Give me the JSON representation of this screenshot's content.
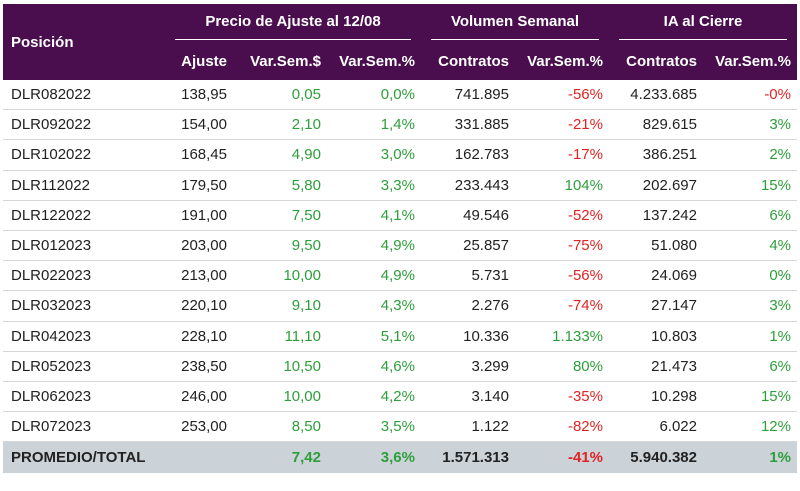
{
  "header": {
    "position": "Posición",
    "group_price": "Precio de Ajuste al 12/08",
    "group_volume": "Volumen Semanal",
    "group_ia": "IA al Cierre",
    "sub": [
      "Ajuste",
      "Var.Sem.$",
      "Var.Sem.%",
      "Contratos",
      "Var.Sem.%",
      "Contratos",
      "Var.Sem.%"
    ]
  },
  "rows": [
    {
      "pos": "DLR082022",
      "ajuste": "138,95",
      "var_usd": "0,05",
      "var_pct": "0,0%",
      "vol": "741.895",
      "vol_var": "-56%",
      "ia": "4.233.685",
      "ia_var": "-0%"
    },
    {
      "pos": "DLR092022",
      "ajuste": "154,00",
      "var_usd": "2,10",
      "var_pct": "1,4%",
      "vol": "331.885",
      "vol_var": "-21%",
      "ia": "829.615",
      "ia_var": "3%"
    },
    {
      "pos": "DLR102022",
      "ajuste": "168,45",
      "var_usd": "4,90",
      "var_pct": "3,0%",
      "vol": "162.783",
      "vol_var": "-17%",
      "ia": "386.251",
      "ia_var": "2%"
    },
    {
      "pos": "DLR112022",
      "ajuste": "179,50",
      "var_usd": "5,80",
      "var_pct": "3,3%",
      "vol": "233.443",
      "vol_var": "104%",
      "ia": "202.697",
      "ia_var": "15%"
    },
    {
      "pos": "DLR122022",
      "ajuste": "191,00",
      "var_usd": "7,50",
      "var_pct": "4,1%",
      "vol": "49.546",
      "vol_var": "-52%",
      "ia": "137.242",
      "ia_var": "6%"
    },
    {
      "pos": "DLR012023",
      "ajuste": "203,00",
      "var_usd": "9,50",
      "var_pct": "4,9%",
      "vol": "25.857",
      "vol_var": "-75%",
      "ia": "51.080",
      "ia_var": "4%"
    },
    {
      "pos": "DLR022023",
      "ajuste": "213,00",
      "var_usd": "10,00",
      "var_pct": "4,9%",
      "vol": "5.731",
      "vol_var": "-56%",
      "ia": "24.069",
      "ia_var": "0%"
    },
    {
      "pos": "DLR032023",
      "ajuste": "220,10",
      "var_usd": "9,10",
      "var_pct": "4,3%",
      "vol": "2.276",
      "vol_var": "-74%",
      "ia": "27.147",
      "ia_var": "3%"
    },
    {
      "pos": "DLR042023",
      "ajuste": "228,10",
      "var_usd": "11,10",
      "var_pct": "5,1%",
      "vol": "10.336",
      "vol_var": "1.133%",
      "ia": "10.803",
      "ia_var": "1%"
    },
    {
      "pos": "DLR052023",
      "ajuste": "238,50",
      "var_usd": "10,50",
      "var_pct": "4,6%",
      "vol": "3.299",
      "vol_var": "80%",
      "ia": "21.473",
      "ia_var": "6%"
    },
    {
      "pos": "DLR062023",
      "ajuste": "246,00",
      "var_usd": "10,00",
      "var_pct": "4,2%",
      "vol": "3.140",
      "vol_var": "-35%",
      "ia": "10.298",
      "ia_var": "15%"
    },
    {
      "pos": "DLR072023",
      "ajuste": "253,00",
      "var_usd": "8,50",
      "var_pct": "3,5%",
      "vol": "1.122",
      "vol_var": "-82%",
      "ia": "6.022",
      "ia_var": "12%"
    }
  ],
  "total": {
    "pos": "PROMEDIO/TOTAL",
    "ajuste": "",
    "var_usd": "7,42",
    "var_pct": "3,6%",
    "vol": "1.571.313",
    "vol_var": "-41%",
    "ia": "5.940.382",
    "ia_var": "1%"
  },
  "colors": {
    "header_bg": "#4a0e4e",
    "positive": "#2e9e3b",
    "negative": "#e02424",
    "total_bg": "#cbd3d9"
  }
}
